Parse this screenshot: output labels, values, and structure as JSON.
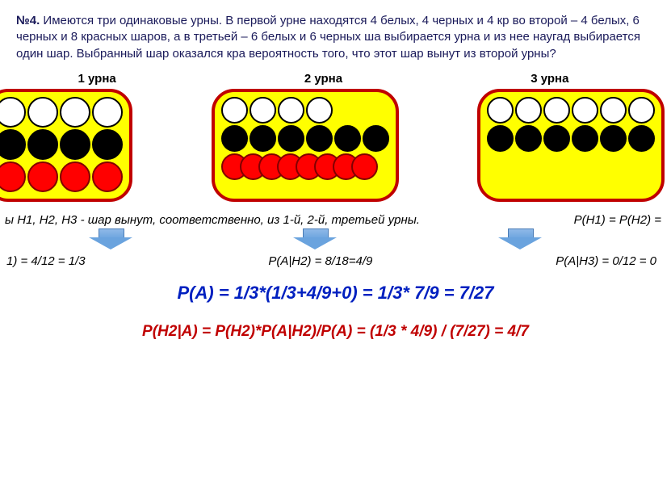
{
  "problem": {
    "number": "№4.",
    "text": "Имеются три одинаковые урны. В первой урне находятся 4 белых, 4 черных и 4 кр\nво второй – 4 белых, 6 черных и 8 красных шаров, а в третьей – 6 белых и 6 черных ша\nвыбирается урна и из нее наугад выбирается один шар. Выбранный шар оказался кра\nвероятность того, что этот шар вынут из второй урны?"
  },
  "labels": {
    "urn1": "1 урна",
    "urn2": "2 урна",
    "urn3": "3 урна"
  },
  "urns": {
    "urn1": {
      "bg": "#ffff00",
      "rows": [
        [
          "white",
          "white",
          "white",
          "white"
        ],
        [
          "black",
          "black",
          "black",
          "black"
        ],
        [
          "red",
          "red",
          "red",
          "red"
        ]
      ]
    },
    "urn2": {
      "bg": "#ffff00",
      "rows": [
        [
          "white",
          "white",
          "white",
          "white"
        ],
        [
          "black",
          "black",
          "black",
          "black",
          "black",
          "black"
        ],
        [
          "red",
          "red",
          "red",
          "red",
          "red",
          "red",
          "red",
          "red"
        ]
      ],
      "overlapRow": 2
    },
    "urn3": {
      "bg": "#ffff00",
      "rows": [
        [
          "white",
          "white",
          "white",
          "white",
          "white",
          "white"
        ],
        [
          "black",
          "black",
          "black",
          "black",
          "black",
          "black"
        ]
      ]
    }
  },
  "hypotheses": {
    "left": "ы H1, H2, H3 - шар вынут, соответственно, из 1-й, 2-й,   третьей урны.",
    "right": "P(H1) = P(H2) = "
  },
  "cond": {
    "p1": "1) = 4/12 = 1/3",
    "p2": "P(A|H2) = 8/18=4/9",
    "p3": "P(A|H3) = 0/12 = 0"
  },
  "formulas": {
    "total": "P(A) = 1/3*(1/3+4/9+0) = 1/3* 7/9 = 7/27",
    "bayes": "P(H2|A) = P(H2)*P(A|H2)/P(A) = (1/3 * 4/9) / (7/27) = 4/7"
  },
  "colors": {
    "urn_border": "#c00000",
    "urn_bg": "#ffff00",
    "ball_white": "#ffffff",
    "ball_black": "#000000",
    "ball_red": "#ff0000",
    "text_problem": "#1a1a5a",
    "formula_blue": "#0020c0",
    "formula_red": "#c00000",
    "arrow": "#6aa3de"
  }
}
